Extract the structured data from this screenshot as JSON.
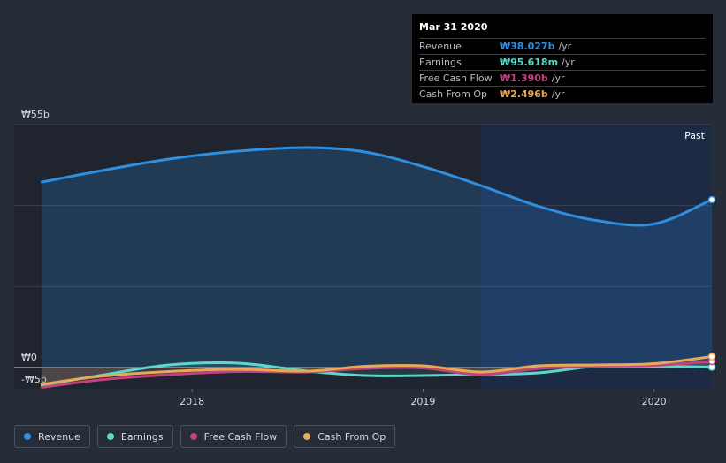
{
  "chart_data": {
    "type": "line",
    "y_tick_labels": [
      "₩55b",
      "₩0",
      "-₩5b"
    ],
    "ylim": [
      -5,
      55
    ],
    "x_tick_labels": [
      "2018",
      "2019",
      "2020"
    ],
    "x_tick_values": [
      2018.0,
      2019.0,
      2020.0
    ],
    "xlim": [
      2017.23,
      2020.25
    ],
    "forecast_split": 2019.25,
    "region_label": "Past",
    "series": [
      {
        "name": "Revenue",
        "color": "#2f8fe0",
        "x": [
          2017.35,
          2017.6,
          2017.9,
          2018.2,
          2018.5,
          2018.75,
          2019.0,
          2019.25,
          2019.5,
          2019.75,
          2020.0,
          2020.25
        ],
        "values": [
          42,
          44.5,
          47.2,
          49.0,
          49.8,
          48.8,
          45.5,
          41.2,
          36.5,
          33.3,
          32.5,
          38.0
        ]
      },
      {
        "name": "Earnings",
        "color": "#5ad8c8",
        "x": [
          2017.35,
          2017.6,
          2017.9,
          2018.2,
          2018.5,
          2018.75,
          2019.0,
          2019.25,
          2019.5,
          2019.75,
          2020.0,
          2020.25
        ],
        "values": [
          -4.0,
          -1.8,
          0.6,
          1.0,
          -0.8,
          -1.8,
          -1.8,
          -1.6,
          -1.2,
          0.3,
          0.3,
          0.1
        ],
        "last_value": 0.096
      },
      {
        "name": "Free Cash Flow",
        "color": "#c0437e",
        "x": [
          2017.35,
          2017.6,
          2017.9,
          2018.2,
          2018.5,
          2018.75,
          2019.0,
          2019.25,
          2019.5,
          2019.75,
          2020.0,
          2020.25
        ],
        "values": [
          -4.5,
          -2.8,
          -1.6,
          -0.9,
          -1.0,
          -0.2,
          -0.1,
          -1.6,
          -0.2,
          0.3,
          0.5,
          1.39
        ]
      },
      {
        "name": "Cash From Op",
        "color": "#e8a857",
        "x": [
          2017.35,
          2017.6,
          2017.9,
          2018.2,
          2018.5,
          2018.75,
          2019.0,
          2019.25,
          2019.5,
          2019.75,
          2020.0,
          2020.25
        ],
        "values": [
          -3.8,
          -2.0,
          -0.9,
          -0.4,
          -0.8,
          0.3,
          0.4,
          -1.0,
          0.4,
          0.6,
          0.9,
          2.496
        ]
      }
    ]
  },
  "tooltip": {
    "date": "Mar 31 2020",
    "rows": [
      {
        "name": "Revenue",
        "value": "₩38.027b",
        "unit": "/yr",
        "color": "#2f8fe0"
      },
      {
        "name": "Earnings",
        "value": "₩95.618m",
        "unit": "/yr",
        "color": "#5ad8c8"
      },
      {
        "name": "Free Cash Flow",
        "value": "₩1.390b",
        "unit": "/yr",
        "color": "#c0437e"
      },
      {
        "name": "Cash From Op",
        "value": "₩2.496b",
        "unit": "/yr",
        "color": "#e8a857"
      }
    ]
  },
  "legend": [
    {
      "label": "Revenue",
      "color": "#2f8fe0"
    },
    {
      "label": "Earnings",
      "color": "#5ad8c8"
    },
    {
      "label": "Free Cash Flow",
      "color": "#c0437e"
    },
    {
      "label": "Cash From Op",
      "color": "#e8a857"
    }
  ]
}
